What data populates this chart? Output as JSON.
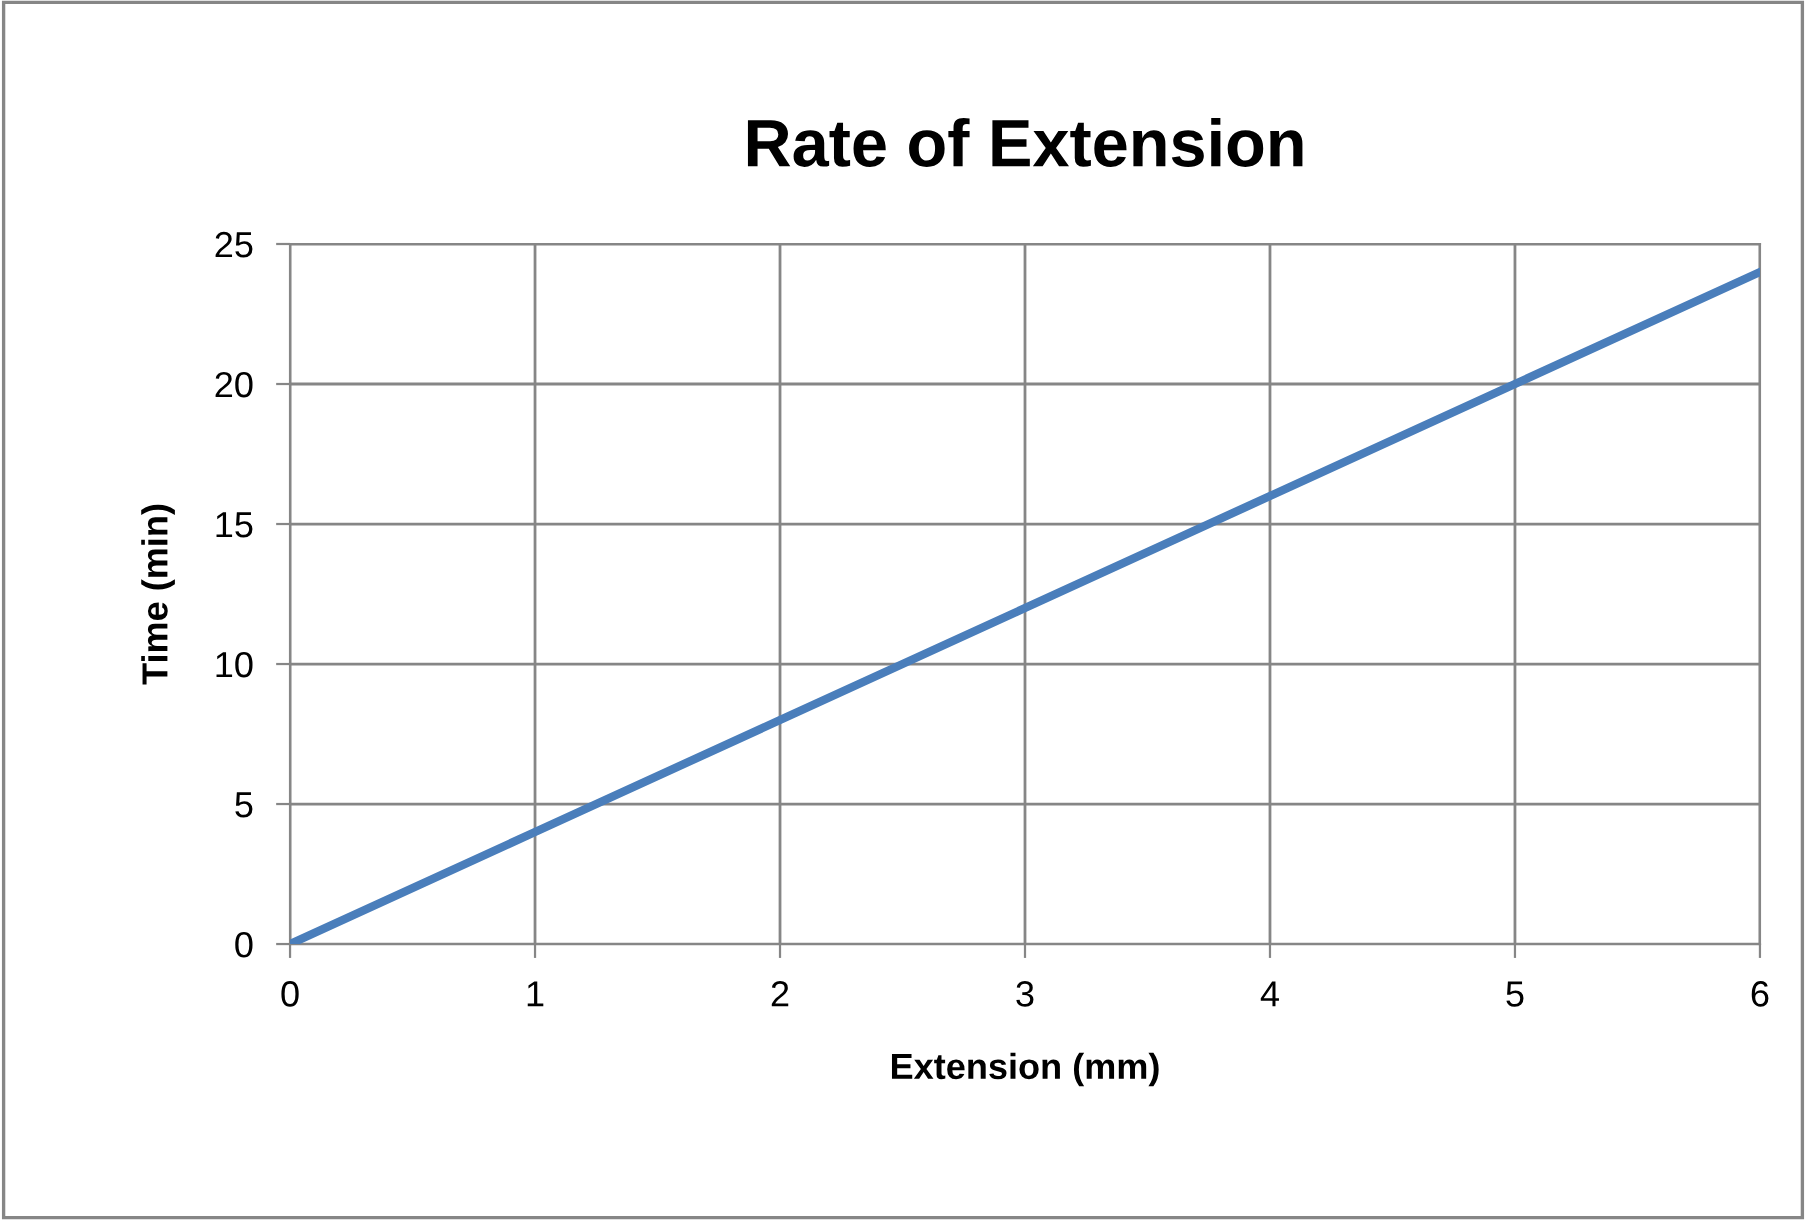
{
  "chart_data": {
    "type": "line",
    "title": "Rate of Extension",
    "xlabel": "Extension (mm)",
    "ylabel": "Time (min)",
    "x": [
      0,
      1,
      2,
      3,
      4,
      5,
      6
    ],
    "series": [
      {
        "color": "#4a7ebb",
        "values": [
          0,
          4,
          8,
          12,
          16,
          20,
          24
        ]
      }
    ],
    "xlim": [
      0,
      6
    ],
    "xticks": [
      0,
      1,
      2,
      3,
      4,
      5,
      6
    ],
    "ylim": [
      0,
      25
    ],
    "yticks": [
      0,
      5,
      10,
      15,
      20,
      25
    ],
    "grid": true,
    "marker": "none",
    "line_style": "solid"
  }
}
